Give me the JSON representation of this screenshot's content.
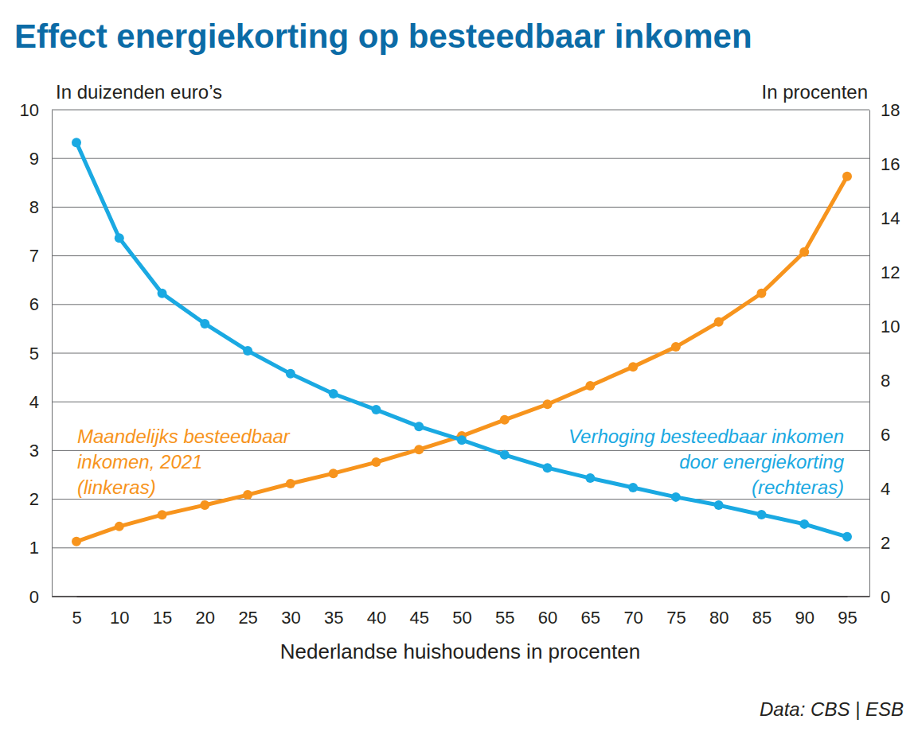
{
  "chart_data": {
    "type": "line",
    "title": "Effect energiekorting op besteedbaar inkomen",
    "y_label": "In duizenden euro’s",
    "y2_label": "In procenten",
    "x_label": "Nederlandse huishoudens in procenten",
    "source": "Data: CBS | ESB",
    "categories": [
      5,
      10,
      15,
      20,
      25,
      30,
      35,
      40,
      45,
      50,
      55,
      60,
      65,
      70,
      75,
      80,
      85,
      90,
      95
    ],
    "ylim": [
      0,
      10
    ],
    "yticks": [
      0,
      1,
      2,
      3,
      4,
      5,
      6,
      7,
      8,
      9,
      10
    ],
    "y2lim": [
      0,
      18
    ],
    "y2ticks": [
      0,
      2,
      4,
      6,
      8,
      10,
      12,
      14,
      16,
      18
    ],
    "grid": true,
    "marker": "circle",
    "series": [
      {
        "name": "Maandelijks besteedbaar\ninkomen, 2021\n(linkeras)",
        "color": "#f7941d",
        "values": [
          1.13,
          1.44,
          1.68,
          1.88,
          2.09,
          2.32,
          2.53,
          2.76,
          3.02,
          3.3,
          3.63,
          3.95,
          4.33,
          4.72,
          5.13,
          5.64,
          6.23,
          7.08,
          8.63
        ]
      },
      {
        "name": "Verhoging besteedbaar inkomen\ndoor energiekorting\n(rechteras)",
        "color": "#1aa9e2",
        "axis": "y2",
        "values": [
          16.79,
          13.26,
          11.21,
          10.09,
          9.09,
          8.24,
          7.5,
          6.91,
          6.29,
          5.79,
          5.24,
          4.76,
          4.38,
          4.03,
          3.68,
          3.38,
          3.03,
          2.68,
          2.21
        ]
      }
    ]
  }
}
